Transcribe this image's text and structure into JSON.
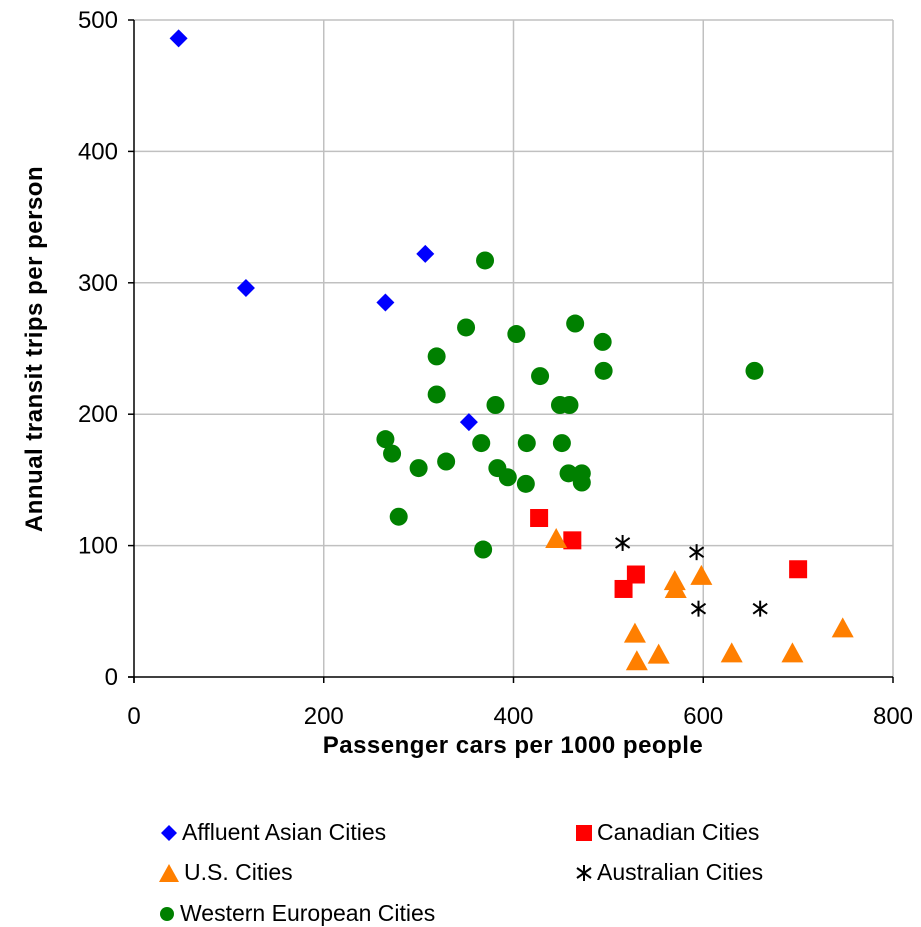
{
  "chart_data": {
    "type": "scatter",
    "xlabel": "Passenger cars per 1000 people",
    "ylabel": "Annual transit trips per person",
    "xlim": [
      0,
      800
    ],
    "ylim": [
      0,
      500
    ],
    "xticks": [
      0,
      200,
      400,
      600,
      800
    ],
    "yticks": [
      0,
      100,
      200,
      300,
      400,
      500
    ],
    "grid": true,
    "legend_position": "bottom",
    "series": [
      {
        "name": "Affluent Asian Cities",
        "marker": "diamond",
        "color": "#0000ff",
        "points": [
          [
            47,
            486
          ],
          [
            118,
            296
          ],
          [
            265,
            285
          ],
          [
            307,
            322
          ],
          [
            353,
            194
          ]
        ]
      },
      {
        "name": "Canadian Cities",
        "marker": "square",
        "color": "#ff0000",
        "points": [
          [
            427,
            121
          ],
          [
            462,
            104
          ],
          [
            516,
            67
          ],
          [
            529,
            78
          ],
          [
            700,
            82
          ]
        ]
      },
      {
        "name": "U.S. Cities",
        "marker": "triangle",
        "color": "#ff7f00",
        "points": [
          [
            445,
            105
          ],
          [
            528,
            33
          ],
          [
            530,
            12
          ],
          [
            553,
            17
          ],
          [
            570,
            73
          ],
          [
            571,
            67
          ],
          [
            598,
            77
          ],
          [
            630,
            18
          ],
          [
            694,
            18
          ],
          [
            747,
            37
          ]
        ]
      },
      {
        "name": "Australian Cities",
        "marker": "asterisk",
        "color": "#000000",
        "points": [
          [
            515,
            102
          ],
          [
            593,
            95
          ],
          [
            595,
            52
          ],
          [
            660,
            52
          ]
        ]
      },
      {
        "name": "Western European Cities",
        "marker": "circle",
        "color": "#008000",
        "points": [
          [
            370,
            317
          ],
          [
            350,
            266
          ],
          [
            319,
            244
          ],
          [
            319,
            215
          ],
          [
            403,
            261
          ],
          [
            465,
            269
          ],
          [
            494,
            255
          ],
          [
            495,
            233
          ],
          [
            428,
            229
          ],
          [
            381,
            207
          ],
          [
            449,
            207
          ],
          [
            459,
            207
          ],
          [
            265,
            181
          ],
          [
            272,
            170
          ],
          [
            300,
            159
          ],
          [
            329,
            164
          ],
          [
            366,
            178
          ],
          [
            414,
            178
          ],
          [
            451,
            178
          ],
          [
            383,
            159
          ],
          [
            394,
            152
          ],
          [
            413,
            147
          ],
          [
            458,
            155
          ],
          [
            472,
            155
          ],
          [
            472,
            148
          ],
          [
            279,
            122
          ],
          [
            368,
            97
          ],
          [
            654,
            233
          ]
        ]
      }
    ]
  }
}
